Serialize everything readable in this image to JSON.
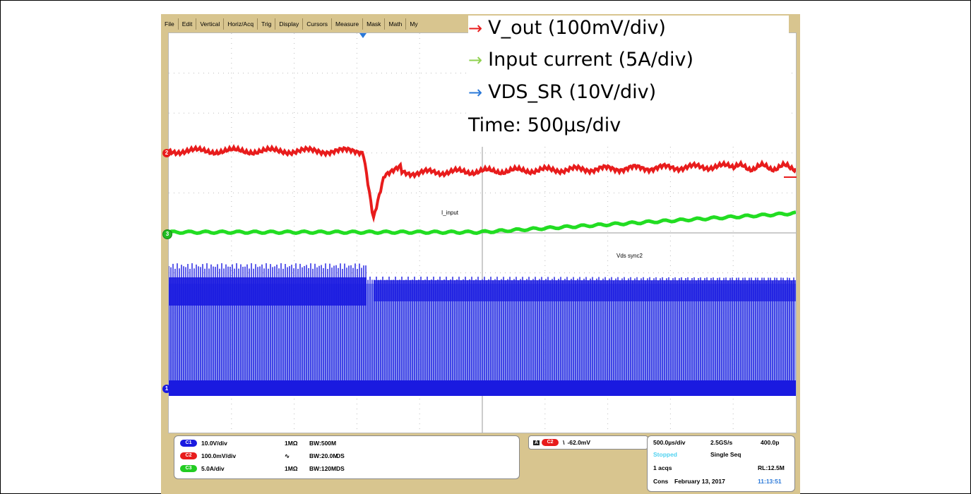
{
  "menu": {
    "items": [
      "File",
      "Edit",
      "Vertical",
      "Horiz/Acq",
      "Trig",
      "Display",
      "Cursors",
      "Measure",
      "Mask",
      "Math",
      "My"
    ]
  },
  "legend": {
    "vout": "V_out (100mV/div)",
    "input_current": "Input current (5A/div)",
    "vds_sr": "VDS_SR (10V/div)",
    "time": "Time: 500µs/div",
    "arrow_glyph": "→"
  },
  "colors": {
    "vout": "#e81c1c",
    "input_current": "#22dd22",
    "vds_sr": "#1a1ae0",
    "arrow_green": "#8fd14f",
    "arrow_blue": "#2a78d8"
  },
  "traces": {
    "input_label": "I_input",
    "vds_label": "Vds sync2"
  },
  "channel_markers": {
    "c2": "2",
    "c3": "3",
    "c1": "1"
  },
  "channels": [
    {
      "badge": "C1",
      "scale": "10.0V/div",
      "coupling": "1MΩ",
      "bw": "BW:500M",
      "ds": ""
    },
    {
      "badge": "C2",
      "scale": "100.0mV/div",
      "coupling": "∿",
      "bw": "BW:20.0M",
      "ds": "DS"
    },
    {
      "badge": "C3",
      "scale": "5.0A/div",
      "coupling": "1MΩ",
      "bw": "BW:120M",
      "ds": "DS"
    }
  ],
  "trigger": {
    "source_tag": "A",
    "channel_badge": "C2",
    "slope_glyph": "\\",
    "level": "-62.0mV"
  },
  "acquisition": {
    "timebase": "500.0µs/div",
    "sample_rate": "2.5GS/s",
    "resolution": "400.0p",
    "state": "Stopped",
    "mode": "Single Seq",
    "acqs": "1 acqs",
    "record_length": "RL:12.5M",
    "cons": "Cons",
    "date": "February 13, 2017",
    "time": "11:13:51"
  }
}
